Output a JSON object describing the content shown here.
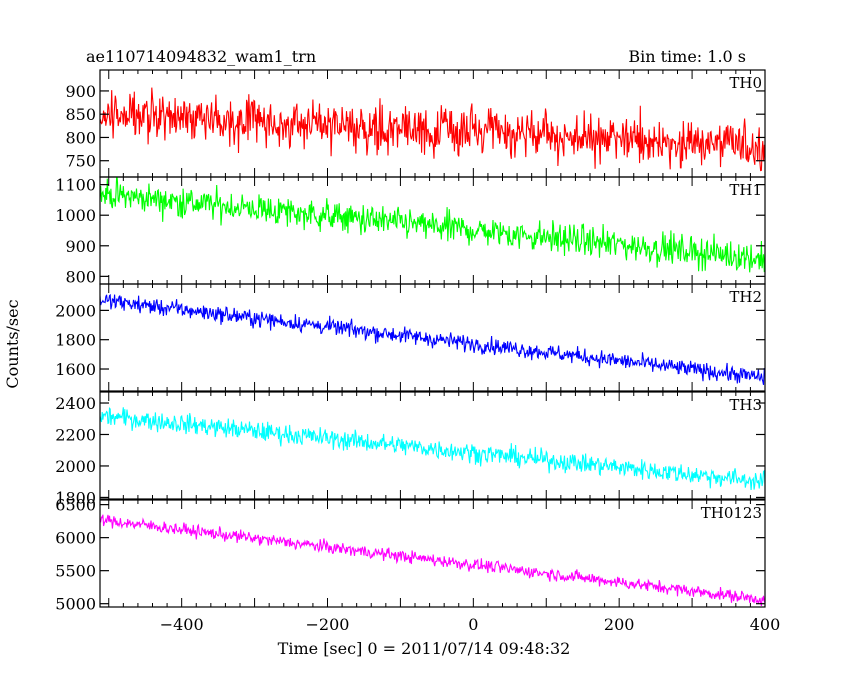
{
  "header": {
    "title": "ae110714094832_wam1_trn",
    "bin_time": "Bin time: 1.0 s"
  },
  "chart_data": {
    "type": "line",
    "xlabel": "Time [sec] 0 = 2011/07/14 09:48:32",
    "ylabel": "Counts/sec",
    "xlim": [
      -512,
      400
    ],
    "x_ticks": [
      -400,
      -200,
      0,
      200,
      400
    ],
    "x_tick_labels": [
      "−400",
      "−200",
      "0",
      "200",
      "400"
    ],
    "bin_seconds": 1.0,
    "grid": false,
    "panels": [
      {
        "name": "TH0",
        "color": "#ff0000",
        "ylim": [
          715,
          945
        ],
        "y_ticks": [
          750,
          800,
          850,
          900
        ],
        "trend": {
          "x": [
            -512,
            400
          ],
          "y": [
            852,
            780
          ]
        },
        "noise_sigma": 40
      },
      {
        "name": "TH1",
        "color": "#00ff00",
        "ylim": [
          775,
          1125
        ],
        "y_ticks": [
          800,
          900,
          1000,
          1100
        ],
        "trend": {
          "x": [
            -512,
            400
          ],
          "y": [
            1070,
            858
          ]
        },
        "noise_sigma": 40
      },
      {
        "name": "TH2",
        "color": "#0000ff",
        "ylim": [
          1450,
          2180
        ],
        "y_ticks": [
          1600,
          1800,
          2000
        ],
        "trend": {
          "x": [
            -512,
            400
          ],
          "y": [
            2070,
            1540
          ]
        },
        "noise_sigma": 45
      },
      {
        "name": "TH3",
        "color": "#00ffff",
        "ylim": [
          1790,
          2470
        ],
        "y_ticks": [
          1800,
          2000,
          2200,
          2400
        ],
        "trend": {
          "x": [
            -512,
            400
          ],
          "y": [
            2320,
            1900
          ]
        },
        "noise_sigma": 50
      },
      {
        "name": "TH0123",
        "color": "#ff00ff",
        "ylim": [
          4950,
          6570
        ],
        "y_ticks": [
          5000,
          5500,
          6000,
          6500
        ],
        "trend": {
          "x": [
            -512,
            400
          ],
          "y": [
            6270,
            5060
          ]
        },
        "noise_sigma": 75
      }
    ]
  }
}
